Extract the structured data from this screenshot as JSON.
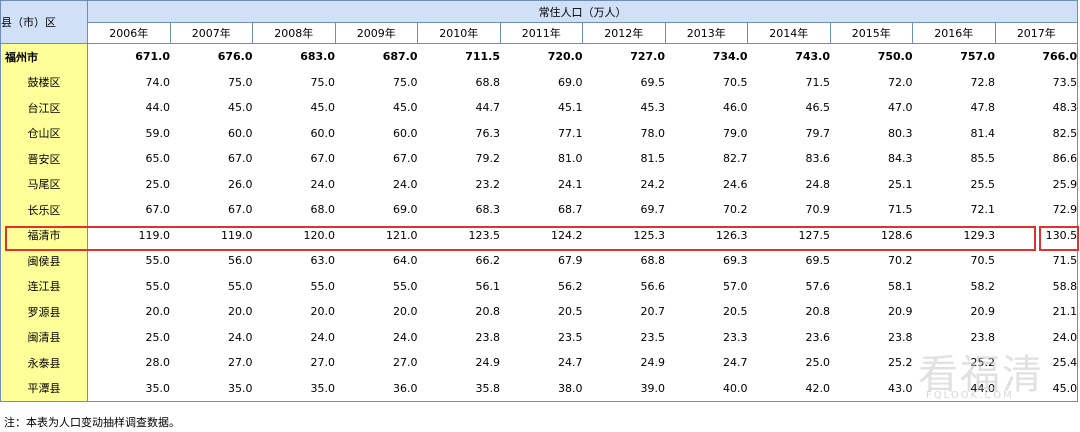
{
  "header": {
    "corner_label": "县（市）区",
    "group_label": "常住人口（万人）",
    "years": [
      "2006年",
      "2007年",
      "2008年",
      "2009年",
      "2010年",
      "2011年",
      "2012年",
      "2013年",
      "2014年",
      "2015年",
      "2016年",
      "2017年"
    ]
  },
  "rows": [
    {
      "name": "福州市",
      "values": [
        "671.0",
        "676.0",
        "683.0",
        "687.0",
        "711.5",
        "720.0",
        "727.0",
        "734.0",
        "743.0",
        "750.0",
        "757.0",
        "766.0"
      ]
    },
    {
      "name": "鼓楼区",
      "values": [
        "74.0",
        "75.0",
        "75.0",
        "75.0",
        "68.8",
        "69.0",
        "69.5",
        "70.5",
        "71.5",
        "72.0",
        "72.8",
        "73.5"
      ]
    },
    {
      "name": "台江区",
      "values": [
        "44.0",
        "45.0",
        "45.0",
        "45.0",
        "44.7",
        "45.1",
        "45.3",
        "46.0",
        "46.5",
        "47.0",
        "47.8",
        "48.3"
      ]
    },
    {
      "name": "仓山区",
      "values": [
        "59.0",
        "60.0",
        "60.0",
        "60.0",
        "76.3",
        "77.1",
        "78.0",
        "79.0",
        "79.7",
        "80.3",
        "81.4",
        "82.5"
      ]
    },
    {
      "name": "晋安区",
      "values": [
        "65.0",
        "67.0",
        "67.0",
        "67.0",
        "79.2",
        "81.0",
        "81.5",
        "82.7",
        "83.6",
        "84.3",
        "85.5",
        "86.6"
      ]
    },
    {
      "name": "马尾区",
      "values": [
        "25.0",
        "26.0",
        "24.0",
        "24.0",
        "23.2",
        "24.1",
        "24.2",
        "24.6",
        "24.8",
        "25.1",
        "25.5",
        "25.9"
      ]
    },
    {
      "name": "长乐区",
      "values": [
        "67.0",
        "67.0",
        "68.0",
        "69.0",
        "68.3",
        "68.7",
        "69.7",
        "70.2",
        "70.9",
        "71.5",
        "72.1",
        "72.9"
      ]
    },
    {
      "name": "福清市",
      "values": [
        "119.0",
        "119.0",
        "120.0",
        "121.0",
        "123.5",
        "124.2",
        "125.3",
        "126.3",
        "127.5",
        "128.6",
        "129.3",
        "130.5"
      ]
    },
    {
      "name": "闽侯县",
      "values": [
        "55.0",
        "56.0",
        "63.0",
        "64.0",
        "66.2",
        "67.9",
        "68.8",
        "69.3",
        "69.5",
        "70.2",
        "70.5",
        "71.5"
      ]
    },
    {
      "name": "连江县",
      "values": [
        "55.0",
        "55.0",
        "55.0",
        "55.0",
        "56.1",
        "56.2",
        "56.6",
        "57.0",
        "57.6",
        "58.1",
        "58.2",
        "58.8"
      ]
    },
    {
      "name": "罗源县",
      "values": [
        "20.0",
        "20.0",
        "20.0",
        "20.0",
        "20.8",
        "20.5",
        "20.7",
        "20.5",
        "20.8",
        "20.9",
        "20.9",
        "21.1"
      ]
    },
    {
      "name": "闽清县",
      "values": [
        "25.0",
        "24.0",
        "24.0",
        "24.0",
        "23.8",
        "23.5",
        "23.5",
        "23.3",
        "23.6",
        "23.8",
        "23.8",
        "24.0"
      ]
    },
    {
      "name": "永泰县",
      "values": [
        "28.0",
        "27.0",
        "27.0",
        "27.0",
        "24.9",
        "24.7",
        "24.9",
        "24.7",
        "25.0",
        "25.2",
        "25.2",
        "25.4"
      ]
    },
    {
      "name": "平潭县",
      "values": [
        "35.0",
        "35.0",
        "35.0",
        "36.0",
        "35.8",
        "38.0",
        "39.0",
        "40.0",
        "42.0",
        "43.0",
        "44.0",
        "45.0"
      ]
    }
  ],
  "note": "注：本表为人口变动抽样调查数据。",
  "watermark": {
    "text": "看福清",
    "url": "FQLOOK.COM"
  }
}
